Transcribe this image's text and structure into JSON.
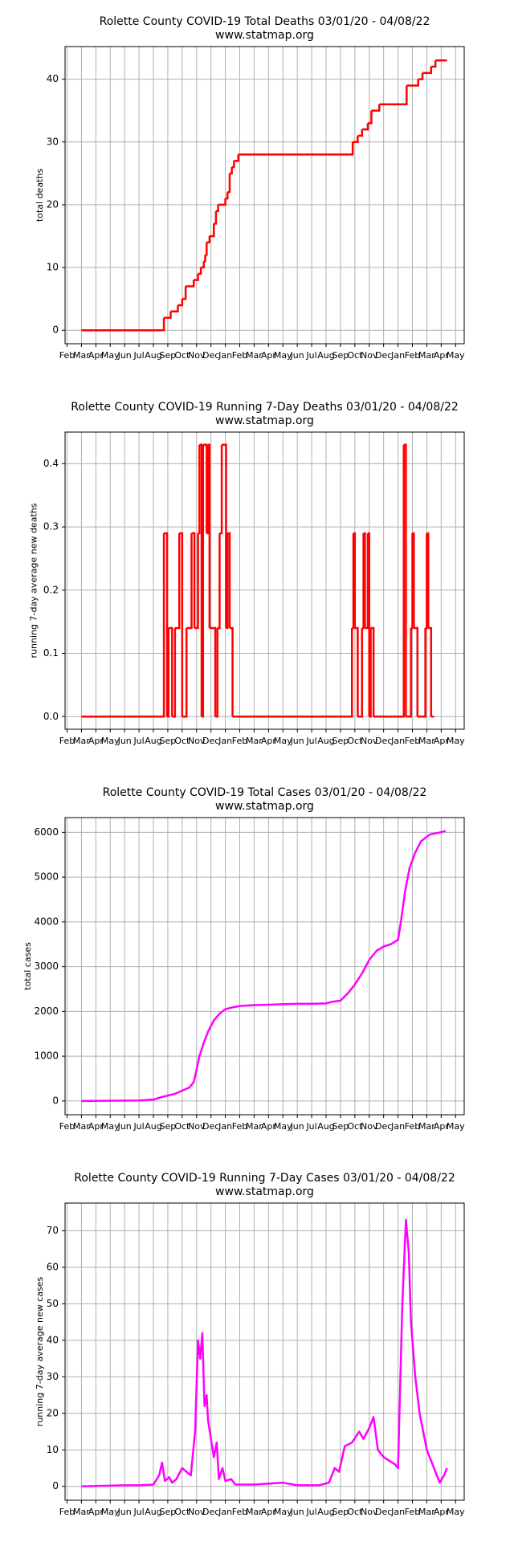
{
  "chart_data": [
    {
      "type": "line",
      "title": "Rolette County COVID-19 Total Deaths 03/01/20 - 04/08/22",
      "subtitle": "www.statmap.org",
      "ylabel": "total deaths",
      "drawstyle": "steps-post",
      "grid": true,
      "xlim": [
        -0.14,
        27.6
      ],
      "xticks": [
        {
          "value": 0,
          "label": "Feb"
        },
        {
          "value": 1,
          "label": "Mar"
        },
        {
          "value": 2,
          "label": "Apr"
        },
        {
          "value": 3,
          "label": "May"
        },
        {
          "value": 4,
          "label": "Jun"
        },
        {
          "value": 5,
          "label": "Jul"
        },
        {
          "value": 6,
          "label": "Aug"
        },
        {
          "value": 7,
          "label": "Sep"
        },
        {
          "value": 8,
          "label": "Oct"
        },
        {
          "value": 9,
          "label": "Nov"
        },
        {
          "value": 10,
          "label": "Dec"
        },
        {
          "value": 11,
          "label": "Jan"
        },
        {
          "value": 12,
          "label": "Feb"
        },
        {
          "value": 13,
          "label": "Mar"
        },
        {
          "value": 14,
          "label": "Apr"
        },
        {
          "value": 15,
          "label": "May"
        },
        {
          "value": 16,
          "label": "Jun"
        },
        {
          "value": 17,
          "label": "Jul"
        },
        {
          "value": 18,
          "label": "Aug"
        },
        {
          "value": 19,
          "label": "Sep"
        },
        {
          "value": 20,
          "label": "Oct"
        },
        {
          "value": 21,
          "label": "Nov"
        },
        {
          "value": 22,
          "label": "Dec"
        },
        {
          "value": 23,
          "label": "Jan"
        },
        {
          "value": 24,
          "label": "Feb"
        },
        {
          "value": 25,
          "label": "Mar"
        },
        {
          "value": 26,
          "label": "Apr"
        },
        {
          "value": 27,
          "label": "May"
        }
      ],
      "ylim": [
        -2.15,
        45.2
      ],
      "yticks": [
        0,
        10,
        20,
        30,
        40
      ],
      "x": [
        1,
        6.73,
        7.2,
        7.7,
        8.0,
        8.24,
        8.8,
        9.1,
        9.3,
        9.5,
        9.6,
        9.7,
        9.9,
        10.2,
        10.35,
        10.5,
        11.0,
        11.15,
        11.3,
        11.45,
        11.6,
        11.9,
        19.85,
        20.2,
        20.5,
        20.9,
        21.15,
        21.7,
        23.6,
        24.4,
        24.7,
        25.3,
        25.6,
        26.4
      ],
      "series": [
        {
          "color": "#ff0000",
          "values": [
            0,
            2,
            3,
            4,
            5,
            7,
            8,
            9,
            10,
            11,
            12,
            14,
            15,
            17,
            19,
            20,
            21,
            22,
            25,
            26,
            27,
            28,
            30,
            31,
            32,
            33,
            35,
            36,
            39,
            40,
            41,
            42,
            43,
            43
          ]
        }
      ]
    },
    {
      "type": "line",
      "title": "Rolette County COVID-19 Running 7-Day Deaths 03/01/20 - 04/08/22",
      "subtitle": "www.statmap.org",
      "ylabel": "running 7-day average new deaths",
      "drawstyle": "steps-post",
      "grid": true,
      "xlim": [
        -0.14,
        27.6
      ],
      "xticks": [
        {
          "value": 0,
          "label": "Feb"
        },
        {
          "value": 1,
          "label": "Mar"
        },
        {
          "value": 2,
          "label": "Apr"
        },
        {
          "value": 3,
          "label": "May"
        },
        {
          "value": 4,
          "label": "Jun"
        },
        {
          "value": 5,
          "label": "Jul"
        },
        {
          "value": 6,
          "label": "Aug"
        },
        {
          "value": 7,
          "label": "Sep"
        },
        {
          "value": 8,
          "label": "Oct"
        },
        {
          "value": 9,
          "label": "Nov"
        },
        {
          "value": 10,
          "label": "Dec"
        },
        {
          "value": 11,
          "label": "Jan"
        },
        {
          "value": 12,
          "label": "Feb"
        },
        {
          "value": 13,
          "label": "Mar"
        },
        {
          "value": 14,
          "label": "Apr"
        },
        {
          "value": 15,
          "label": "May"
        },
        {
          "value": 16,
          "label": "Jun"
        },
        {
          "value": 17,
          "label": "Jul"
        },
        {
          "value": 18,
          "label": "Aug"
        },
        {
          "value": 19,
          "label": "Sep"
        },
        {
          "value": 20,
          "label": "Oct"
        },
        {
          "value": 21,
          "label": "Nov"
        },
        {
          "value": 22,
          "label": "Dec"
        },
        {
          "value": 23,
          "label": "Jan"
        },
        {
          "value": 24,
          "label": "Feb"
        },
        {
          "value": 25,
          "label": "Mar"
        },
        {
          "value": 26,
          "label": "Apr"
        },
        {
          "value": 27,
          "label": "May"
        }
      ],
      "ylim": [
        -0.02,
        0.45
      ],
      "yticks": [
        {
          "value": 0,
          "label": "0.0"
        },
        0.1,
        0.2,
        0.3,
        0.4
      ],
      "x": [
        1,
        6.73,
        6.95,
        7.05,
        7.3,
        7.5,
        7.8,
        8.0,
        8.3,
        8.65,
        8.85,
        9.1,
        9.2,
        9.35,
        9.45,
        9.7,
        9.8,
        9.9,
        10.3,
        10.45,
        10.6,
        10.75,
        11.05,
        11.15,
        11.3,
        11.5,
        19.8,
        19.9,
        20.0,
        20.2,
        20.5,
        20.6,
        20.7,
        20.9,
        21.0,
        21.1,
        21.3,
        23.4,
        23.55,
        23.9,
        24.0,
        24.1,
        24.35,
        24.9,
        25.0,
        25.1,
        25.3,
        25.5
      ],
      "series": [
        {
          "color": "#ff0000",
          "values": [
            0,
            0.29,
            0,
            0.14,
            0,
            0.14,
            0.29,
            0,
            0.14,
            0.29,
            0.14,
            0.29,
            0.43,
            0,
            0.43,
            0.29,
            0.43,
            0.14,
            0,
            0.14,
            0.29,
            0.43,
            0.14,
            0.29,
            0.14,
            0,
            0.14,
            0.29,
            0.14,
            0,
            0.14,
            0.29,
            0.14,
            0.29,
            0,
            0.14,
            0,
            0.43,
            0,
            0.14,
            0.29,
            0.14,
            0,
            0.14,
            0.29,
            0.14,
            0,
            0
          ]
        }
      ]
    },
    {
      "type": "line",
      "title": "Rolette County COVID-19 Total Cases 03/01/20 - 04/08/22",
      "subtitle": "www.statmap.org",
      "ylabel": "total cases",
      "grid": true,
      "xlim": [
        -0.14,
        27.6
      ],
      "xticks": [
        {
          "value": 0,
          "label": "Feb"
        },
        {
          "value": 1,
          "label": "Mar"
        },
        {
          "value": 2,
          "label": "Apr"
        },
        {
          "value": 3,
          "label": "May"
        },
        {
          "value": 4,
          "label": "Jun"
        },
        {
          "value": 5,
          "label": "Jul"
        },
        {
          "value": 6,
          "label": "Aug"
        },
        {
          "value": 7,
          "label": "Sep"
        },
        {
          "value": 8,
          "label": "Oct"
        },
        {
          "value": 9,
          "label": "Nov"
        },
        {
          "value": 10,
          "label": "Dec"
        },
        {
          "value": 11,
          "label": "Jan"
        },
        {
          "value": 12,
          "label": "Feb"
        },
        {
          "value": 13,
          "label": "Mar"
        },
        {
          "value": 14,
          "label": "Apr"
        },
        {
          "value": 15,
          "label": "May"
        },
        {
          "value": 16,
          "label": "Jun"
        },
        {
          "value": 17,
          "label": "Jul"
        },
        {
          "value": 18,
          "label": "Aug"
        },
        {
          "value": 19,
          "label": "Sep"
        },
        {
          "value": 20,
          "label": "Oct"
        },
        {
          "value": 21,
          "label": "Nov"
        },
        {
          "value": 22,
          "label": "Dec"
        },
        {
          "value": 23,
          "label": "Jan"
        },
        {
          "value": 24,
          "label": "Feb"
        },
        {
          "value": 25,
          "label": "Mar"
        },
        {
          "value": 26,
          "label": "Apr"
        },
        {
          "value": 27,
          "label": "May"
        }
      ],
      "ylim": [
        -308,
        6330
      ],
      "yticks": [
        0,
        1000,
        2000,
        3000,
        4000,
        5000,
        6000
      ],
      "x": [
        1,
        5,
        6,
        6.5,
        7,
        7.5,
        8,
        8.5,
        8.8,
        9,
        9.2,
        9.5,
        9.8,
        10.2,
        10.6,
        11,
        11.5,
        12,
        13,
        14,
        15,
        16,
        17,
        18,
        18.5,
        19,
        19.5,
        20,
        20.5,
        21,
        21.5,
        22,
        22.5,
        23,
        23.2,
        23.5,
        23.8,
        24.2,
        24.6,
        25.2,
        25.8,
        26.3
      ],
      "series": [
        {
          "color": "#ff00ff",
          "values": [
            0,
            10,
            30,
            80,
            120,
            160,
            230,
            300,
            420,
            700,
            1000,
            1300,
            1550,
            1800,
            1950,
            2050,
            2090,
            2120,
            2140,
            2150,
            2160,
            2170,
            2170,
            2180,
            2220,
            2240,
            2400,
            2600,
            2850,
            3150,
            3350,
            3450,
            3500,
            3600,
            4000,
            4700,
            5200,
            5550,
            5800,
            5950,
            5990,
            6030
          ]
        }
      ]
    },
    {
      "type": "line",
      "title": "Rolette County COVID-19 Running 7-Day Cases 03/01/20 - 04/08/22",
      "subtitle": "www.statmap.org",
      "ylabel": "running 7-day average new cases",
      "grid": true,
      "xlim": [
        -0.14,
        27.6
      ],
      "xticks": [
        {
          "value": 0,
          "label": "Feb"
        },
        {
          "value": 1,
          "label": "Mar"
        },
        {
          "value": 2,
          "label": "Apr"
        },
        {
          "value": 3,
          "label": "May"
        },
        {
          "value": 4,
          "label": "Jun"
        },
        {
          "value": 5,
          "label": "Jul"
        },
        {
          "value": 6,
          "label": "Aug"
        },
        {
          "value": 7,
          "label": "Sep"
        },
        {
          "value": 8,
          "label": "Oct"
        },
        {
          "value": 9,
          "label": "Nov"
        },
        {
          "value": 10,
          "label": "Dec"
        },
        {
          "value": 11,
          "label": "Jan"
        },
        {
          "value": 12,
          "label": "Feb"
        },
        {
          "value": 13,
          "label": "Mar"
        },
        {
          "value": 14,
          "label": "Apr"
        },
        {
          "value": 15,
          "label": "May"
        },
        {
          "value": 16,
          "label": "Jun"
        },
        {
          "value": 17,
          "label": "Jul"
        },
        {
          "value": 18,
          "label": "Aug"
        },
        {
          "value": 19,
          "label": "Sep"
        },
        {
          "value": 20,
          "label": "Oct"
        },
        {
          "value": 21,
          "label": "Nov"
        },
        {
          "value": 22,
          "label": "Dec"
        },
        {
          "value": 23,
          "label": "Jan"
        },
        {
          "value": 24,
          "label": "Feb"
        },
        {
          "value": 25,
          "label": "Mar"
        },
        {
          "value": 26,
          "label": "Apr"
        },
        {
          "value": 27,
          "label": "May"
        }
      ],
      "ylim": [
        -3.8,
        77.6
      ],
      "yticks": [
        0,
        10,
        20,
        30,
        40,
        50,
        60,
        70
      ],
      "x": [
        1,
        4,
        5,
        6,
        6.4,
        6.6,
        6.8,
        7.1,
        7.3,
        7.6,
        8,
        8.3,
        8.6,
        8.9,
        9.1,
        9.25,
        9.4,
        9.55,
        9.7,
        9.8,
        10.0,
        10.2,
        10.4,
        10.55,
        10.8,
        11.0,
        11.4,
        11.7,
        13,
        15,
        16,
        17.5,
        18.2,
        18.6,
        18.9,
        19.3,
        19.8,
        20.3,
        20.6,
        21.0,
        21.3,
        21.6,
        22.0,
        22.4,
        22.8,
        23.0,
        23.3,
        23.55,
        23.75,
        23.9,
        24.2,
        24.5,
        25.0,
        25.4,
        25.9,
        26.2,
        26.4
      ],
      "series": [
        {
          "color": "#ff00ff",
          "values": [
            0,
            0.3,
            0.3,
            0.5,
            3,
            6.5,
            1.5,
            2.5,
            1,
            2,
            5,
            4,
            3,
            15,
            40,
            35,
            42,
            22,
            25,
            18,
            13,
            8,
            12,
            2,
            5,
            1.5,
            2,
            0.5,
            0.5,
            1,
            0.3,
            0.3,
            1,
            5,
            4,
            11,
            12,
            15,
            13,
            16,
            19,
            10,
            8,
            7,
            6,
            5,
            50,
            73,
            64,
            45,
            30,
            20,
            10,
            6,
            1,
            3,
            5
          ]
        }
      ]
    }
  ]
}
